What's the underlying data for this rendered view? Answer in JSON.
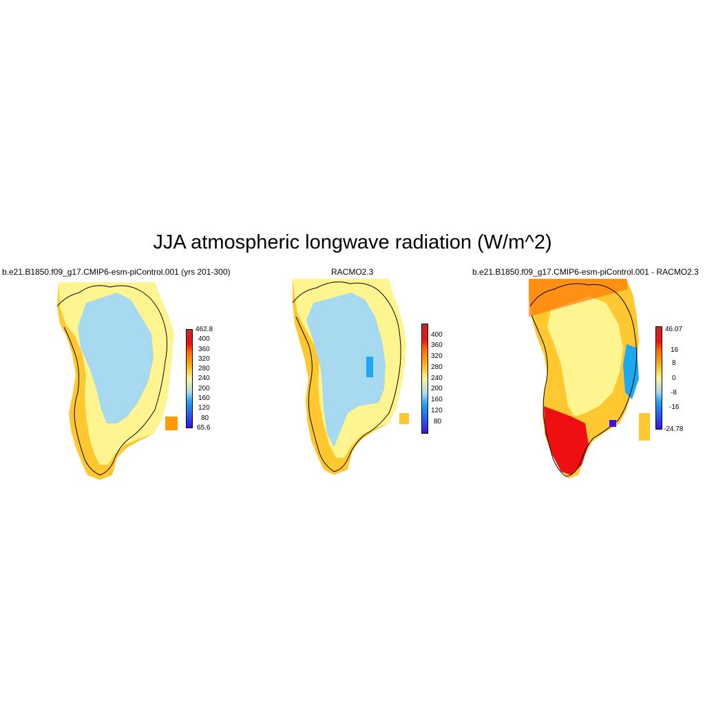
{
  "title": "JJA atmospheric longwave radiation (W/m^2)",
  "panels": [
    {
      "title": "b.e21.B1850.f09_g17.CMIP6-esm-piControl.001 (yrs 201-300)",
      "colorbar": {
        "colors": [
          "#3a10e6",
          "#2a48e8",
          "#1f78f0",
          "#1ea8f2",
          "#a6d9f0",
          "#fff590",
          "#ffc830",
          "#ff9a00",
          "#ff6a00",
          "#ee1010",
          "#c42828"
        ],
        "labels": [
          "462.8",
          "400",
          "360",
          "320",
          "280",
          "240",
          "200",
          "160",
          "120",
          "80",
          "65.6"
        ]
      }
    },
    {
      "title": "RACMO2.3",
      "colorbar": {
        "colors": [
          "#3a10e6",
          "#2a48e8",
          "#1f78f0",
          "#1ea8f2",
          "#a6d9f0",
          "#fff590",
          "#ffc830",
          "#ff9a00",
          "#ff6a00",
          "#ee1010",
          "#c42828"
        ],
        "labels": [
          "400",
          "360",
          "320",
          "280",
          "240",
          "200",
          "160",
          "120",
          "80"
        ]
      }
    },
    {
      "title": "b.e21.B1850.f09_g17.CMIP6-esm-piControl.001 - RACMO2.3",
      "colorbar": {
        "colors": [
          "#3a10e6",
          "#2a48e8",
          "#1f78f0",
          "#1ea8f2",
          "#a6d9f0",
          "#fff590",
          "#ffc830",
          "#ff9a00",
          "#ff6a00",
          "#ee1010",
          "#c42828"
        ],
        "labels": [
          "46.07",
          "16",
          "8",
          "0",
          "-8",
          "-16",
          "-24.78"
        ]
      }
    }
  ]
}
